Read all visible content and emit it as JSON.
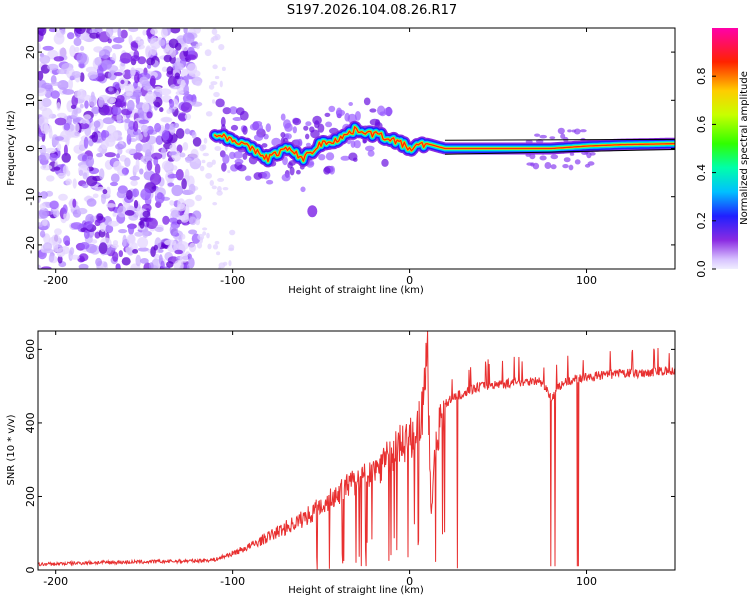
{
  "chart_data": [
    {
      "type": "heatmap",
      "title": "S197.2026.104.08.26.R17",
      "xlabel": "Height of straight line (km)",
      "ylabel": "Frequency (Hz)",
      "xlim": [
        -210,
        150
      ],
      "ylim": [
        -25,
        25
      ],
      "xticks": [
        -200,
        -100,
        0,
        100
      ],
      "yticks": [
        -20,
        -10,
        0,
        10,
        20
      ],
      "colorbar": {
        "label": "Normalized spectral amplitude",
        "range": [
          0,
          1
        ],
        "ticks": [
          "0.0",
          "0.2",
          "0.4",
          "0.6",
          "0.8"
        ]
      },
      "ridge": {
        "x": [
          -110,
          -100,
          -90,
          -80,
          -70,
          -60,
          -50,
          -40,
          -30,
          -20,
          -10,
          0,
          10,
          20,
          40,
          60,
          80,
          100,
          120,
          150
        ],
        "y": [
          3,
          2,
          0,
          -2,
          0,
          -2,
          1,
          2,
          4,
          3,
          2,
          0,
          1,
          0,
          0,
          0,
          0,
          0.5,
          0.8,
          1
        ]
      }
    },
    {
      "type": "line",
      "xlabel": "Height of straight line (km)",
      "ylabel": "SNR (10 * v/v)",
      "xlim": [
        -210,
        150
      ],
      "ylim": [
        0,
        650
      ],
      "xticks": [
        -200,
        -100,
        0,
        100
      ],
      "yticks": [
        0,
        200,
        400,
        600
      ],
      "series": [
        {
          "name": "SNR",
          "color": "#e83030",
          "x": [
            -210,
            -180,
            -150,
            -120,
            -110,
            -100,
            -90,
            -80,
            -70,
            -60,
            -50,
            -40,
            -30,
            -20,
            -10,
            -5,
            0,
            5,
            8,
            10,
            12,
            15,
            20,
            25,
            30,
            40,
            50,
            60,
            70,
            75,
            80,
            85,
            90,
            95,
            100,
            110,
            120,
            130,
            140,
            150
          ],
          "y": [
            15,
            20,
            22,
            25,
            28,
            45,
            65,
            90,
            115,
            140,
            175,
            210,
            240,
            270,
            315,
            340,
            360,
            390,
            440,
            600,
            160,
            360,
            450,
            470,
            480,
            500,
            505,
            510,
            515,
            510,
            470,
            500,
            515,
            520,
            525,
            530,
            535,
            535,
            540,
            540
          ]
        }
      ]
    }
  ]
}
